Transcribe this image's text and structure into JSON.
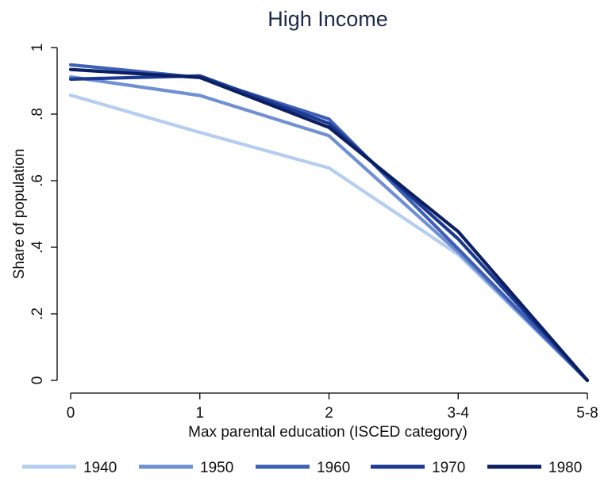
{
  "chart_data": {
    "type": "line",
    "title": "High Income",
    "xlabel": "Max parental education (ISCED category)",
    "ylabel": "Share of population",
    "categories": [
      "0",
      "1",
      "2",
      "3-4",
      "5-8"
    ],
    "yticks": [
      {
        "value": 0,
        "label": "0"
      },
      {
        "value": 0.2,
        "label": ".2"
      },
      {
        "value": 0.4,
        "label": ".4"
      },
      {
        "value": 0.6,
        "label": ".6"
      },
      {
        "value": 0.8,
        "label": ".8"
      },
      {
        "value": 1,
        "label": "1"
      }
    ],
    "ylim": [
      0,
      1
    ],
    "grid": false,
    "legend": "bottom",
    "series": [
      {
        "name": "1940",
        "color": "#b4cdf0",
        "values": [
          0.857,
          0.745,
          0.638,
          0.378,
          0.0
        ]
      },
      {
        "name": "1950",
        "color": "#6f90d2",
        "values": [
          0.912,
          0.856,
          0.735,
          0.385,
          0.0
        ]
      },
      {
        "name": "1960",
        "color": "#3d5fb5",
        "values": [
          0.948,
          0.91,
          0.785,
          0.395,
          0.0
        ]
      },
      {
        "name": "1970",
        "color": "#1d3a93",
        "values": [
          0.905,
          0.915,
          0.772,
          0.425,
          0.0
        ]
      },
      {
        "name": "1980",
        "color": "#0b1f63",
        "values": [
          0.934,
          0.91,
          0.76,
          0.447,
          0.0
        ]
      }
    ]
  }
}
